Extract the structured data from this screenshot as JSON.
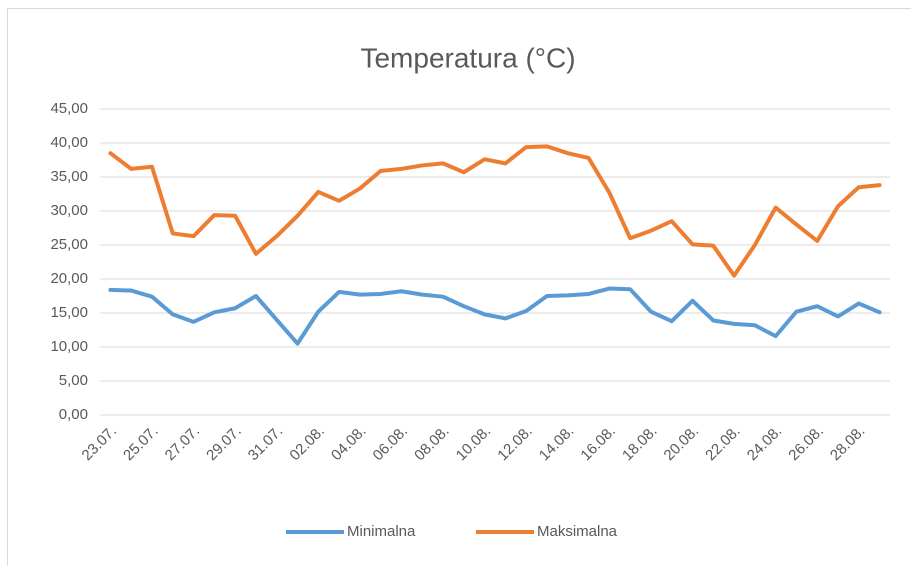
{
  "chart_data": {
    "type": "line",
    "title": "Temperatura (°C)",
    "categories": [
      "23.07.",
      null,
      "25.07.",
      null,
      "27.07.",
      null,
      "29.07.",
      null,
      "31.07.",
      null,
      "02.08.",
      null,
      "04.08.",
      null,
      "06.08.",
      null,
      "08.08.",
      null,
      "10.08.",
      null,
      "12.08.",
      null,
      "14.08.",
      null,
      "16.08.",
      null,
      "18.08.",
      null,
      "20.08.",
      null,
      "22.08.",
      null,
      "24.08.",
      null,
      "26.08.",
      null,
      "28.08.",
      null
    ],
    "series": [
      {
        "name": "Minimalna",
        "color": "#5b9bd5",
        "values": [
          18.4,
          18.3,
          17.4,
          14.8,
          13.7,
          15.1,
          15.7,
          17.5,
          14.0,
          10.5,
          15.2,
          18.1,
          17.7,
          17.8,
          18.2,
          17.7,
          17.4,
          16.0,
          14.8,
          14.2,
          15.3,
          17.5,
          17.6,
          17.8,
          18.6,
          18.5,
          15.2,
          13.8,
          16.8,
          13.9,
          13.4,
          13.2,
          11.6,
          15.2,
          16.0,
          14.5,
          16.4,
          15.1
        ]
      },
      {
        "name": "Maksimalna",
        "color": "#ed7d31",
        "values": [
          38.5,
          36.2,
          36.5,
          26.7,
          26.3,
          29.4,
          29.3,
          23.7,
          26.3,
          29.3,
          32.8,
          31.5,
          33.3,
          35.9,
          36.2,
          36.7,
          37.0,
          35.7,
          37.6,
          37.0,
          39.4,
          39.5,
          38.5,
          37.8,
          32.7,
          26.0,
          27.1,
          28.5,
          25.1,
          24.9,
          20.5,
          25.0,
          30.5,
          28.0,
          25.6,
          30.7,
          33.5,
          33.8
        ]
      }
    ],
    "ylim": [
      0,
      45
    ],
    "yticks": [
      {
        "value": 0,
        "label": "0,00"
      },
      {
        "value": 5,
        "label": "5,00"
      },
      {
        "value": 10,
        "label": "10,00"
      },
      {
        "value": 15,
        "label": "15,00"
      },
      {
        "value": 20,
        "label": "20,00"
      },
      {
        "value": 25,
        "label": "25,00"
      },
      {
        "value": 30,
        "label": "30,00"
      },
      {
        "value": 35,
        "label": "35,00"
      },
      {
        "value": 40,
        "label": "40,00"
      },
      {
        "value": 45,
        "label": "45,00"
      }
    ],
    "grid": true,
    "legend": "bottom"
  }
}
